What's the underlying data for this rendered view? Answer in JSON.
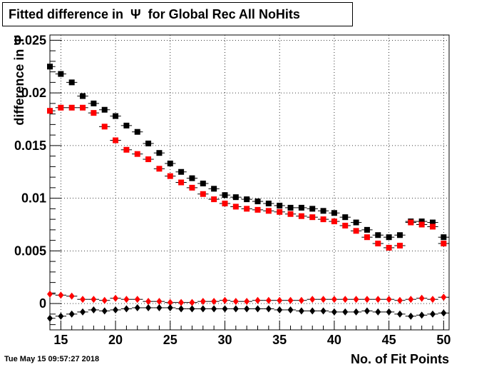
{
  "title": {
    "text": "Fitted difference in  Ψ  for Global Rec All NoHits"
  },
  "timestamp": "Tue May 15 09:57:27 2018",
  "chart_data": {
    "type": "scatter",
    "title": "Fitted difference in  Ψ  for Global Rec All NoHits",
    "xlabel": "No. of Fit Points",
    "ylabel": "difference in  Ψ",
    "xlim": [
      14,
      50.5
    ],
    "ylim": [
      -0.0025,
      0.0255
    ],
    "grid": true,
    "x_ticks": [
      15,
      20,
      25,
      30,
      35,
      40,
      45,
      50
    ],
    "x_tick_labels": [
      "15",
      "20",
      "25",
      "30",
      "35",
      "40",
      "45",
      "50"
    ],
    "y_ticks": [
      0,
      0.005,
      0.01,
      0.015,
      0.02,
      0.025
    ],
    "y_tick_labels": [
      "0",
      "0.005",
      "0.01",
      "0.015",
      "0.02",
      "0.025"
    ],
    "series": [
      {
        "marker": "square",
        "color": "#000000",
        "x": [
          14,
          15,
          16,
          17,
          18,
          19,
          20,
          21,
          22,
          23,
          24,
          25,
          26,
          27,
          28,
          29,
          30,
          31,
          32,
          33,
          34,
          35,
          36,
          37,
          38,
          39,
          40,
          41,
          42,
          43,
          44,
          45,
          46,
          47,
          48,
          49,
          50
        ],
        "y": [
          0.0225,
          0.0218,
          0.021,
          0.0197,
          0.019,
          0.0184,
          0.0178,
          0.0169,
          0.0163,
          0.0152,
          0.0143,
          0.0133,
          0.0125,
          0.0119,
          0.0114,
          0.0109,
          0.0103,
          0.0101,
          0.0099,
          0.0097,
          0.0095,
          0.0093,
          0.0091,
          0.0091,
          0.009,
          0.0088,
          0.0086,
          0.0082,
          0.0077,
          0.007,
          0.0065,
          0.0063,
          0.0065,
          0.0078,
          0.0078,
          0.0077,
          0.0063
        ]
      },
      {
        "marker": "square",
        "color": "#ff0000",
        "x": [
          14,
          15,
          16,
          17,
          18,
          19,
          20,
          21,
          22,
          23,
          24,
          25,
          26,
          27,
          28,
          29,
          30,
          31,
          32,
          33,
          34,
          35,
          36,
          37,
          38,
          39,
          40,
          41,
          42,
          43,
          44,
          45,
          46,
          47,
          48,
          49,
          50
        ],
        "y": [
          0.0183,
          0.0186,
          0.0186,
          0.0186,
          0.0181,
          0.0168,
          0.0155,
          0.0146,
          0.0142,
          0.0137,
          0.0128,
          0.0121,
          0.0115,
          0.011,
          0.0104,
          0.0099,
          0.0095,
          0.0092,
          0.009,
          0.0089,
          0.0088,
          0.0087,
          0.0085,
          0.0083,
          0.0082,
          0.008,
          0.0078,
          0.0074,
          0.0069,
          0.0063,
          0.0057,
          0.0053,
          0.0055,
          0.0077,
          0.0075,
          0.0073,
          0.0057
        ]
      },
      {
        "marker": "diamond",
        "color": "#ff0000",
        "x": [
          14,
          15,
          16,
          17,
          18,
          19,
          20,
          21,
          22,
          23,
          24,
          25,
          26,
          27,
          28,
          29,
          30,
          31,
          32,
          33,
          34,
          35,
          36,
          37,
          38,
          39,
          40,
          41,
          42,
          43,
          44,
          45,
          46,
          47,
          48,
          49,
          50
        ],
        "y": [
          0.0009,
          0.0008,
          0.0007,
          0.0004,
          0.0004,
          0.0003,
          0.0005,
          0.0004,
          0.0004,
          0.0002,
          0.0002,
          0.0001,
          0.0001,
          0.0001,
          0.0002,
          0.0002,
          0.0003,
          0.0002,
          0.0002,
          0.0003,
          0.0003,
          0.0003,
          0.0003,
          0.0003,
          0.0004,
          0.0004,
          0.0004,
          0.0004,
          0.0004,
          0.0004,
          0.0004,
          0.0004,
          0.0003,
          0.0004,
          0.0005,
          0.0004,
          0.0006
        ]
      },
      {
        "marker": "diamond",
        "color": "#000000",
        "x": [
          14,
          15,
          16,
          17,
          18,
          19,
          20,
          21,
          22,
          23,
          24,
          25,
          26,
          27,
          28,
          29,
          30,
          31,
          32,
          33,
          34,
          35,
          36,
          37,
          38,
          39,
          40,
          41,
          42,
          43,
          44,
          45,
          46,
          47,
          48,
          49,
          50
        ],
        "y": [
          -0.0014,
          -0.0012,
          -0.001,
          -0.0008,
          -0.0006,
          -0.0007,
          -0.0006,
          -0.0005,
          -0.0004,
          -0.0004,
          -0.0004,
          -0.0004,
          -0.0005,
          -0.0005,
          -0.0005,
          -0.0005,
          -0.0005,
          -0.0005,
          -0.0005,
          -0.0005,
          -0.0005,
          -0.0006,
          -0.0006,
          -0.0007,
          -0.0007,
          -0.0007,
          -0.0008,
          -0.0008,
          -0.0008,
          -0.0007,
          -0.0008,
          -0.0008,
          -0.001,
          -0.0012,
          -0.0011,
          -0.001,
          -0.0009
        ]
      }
    ]
  }
}
